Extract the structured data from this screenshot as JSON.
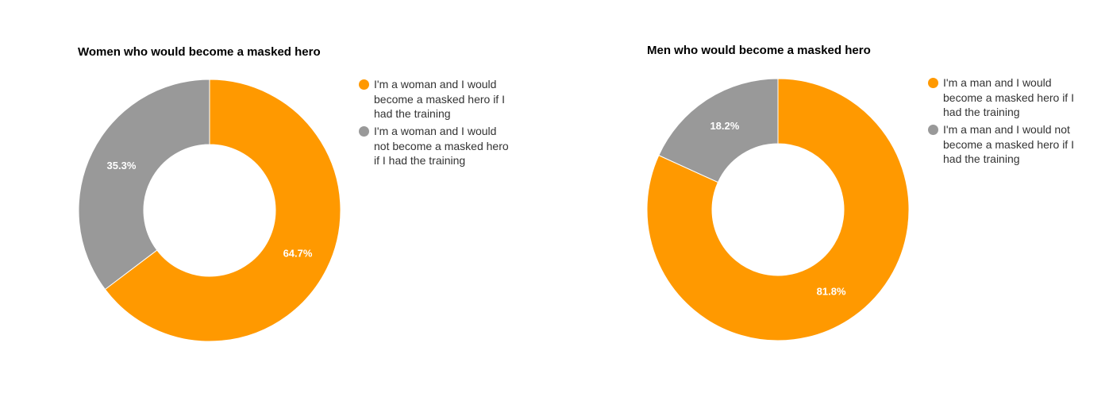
{
  "chart_data": [
    {
      "type": "donut",
      "title": "Women who would become a masked hero",
      "categories": [
        "I'm a woman and I would become a masked hero if I had the training",
        "I'm a woman and I would not become a masked hero if I had the training"
      ],
      "values": [
        64.7,
        35.3
      ],
      "value_labels": [
        "64.7%",
        "35.3%"
      ],
      "colors": [
        "#ff9900",
        "#999999"
      ]
    },
    {
      "type": "donut",
      "title": "Men who would become a masked hero",
      "categories": [
        "I'm a man and I would become a masked hero if I had the training",
        "I'm a man and I would not become a masked hero if I had the training"
      ],
      "values": [
        81.8,
        18.2
      ],
      "value_labels": [
        "81.8%",
        "18.2%"
      ],
      "colors": [
        "#ff9900",
        "#999999"
      ]
    }
  ]
}
